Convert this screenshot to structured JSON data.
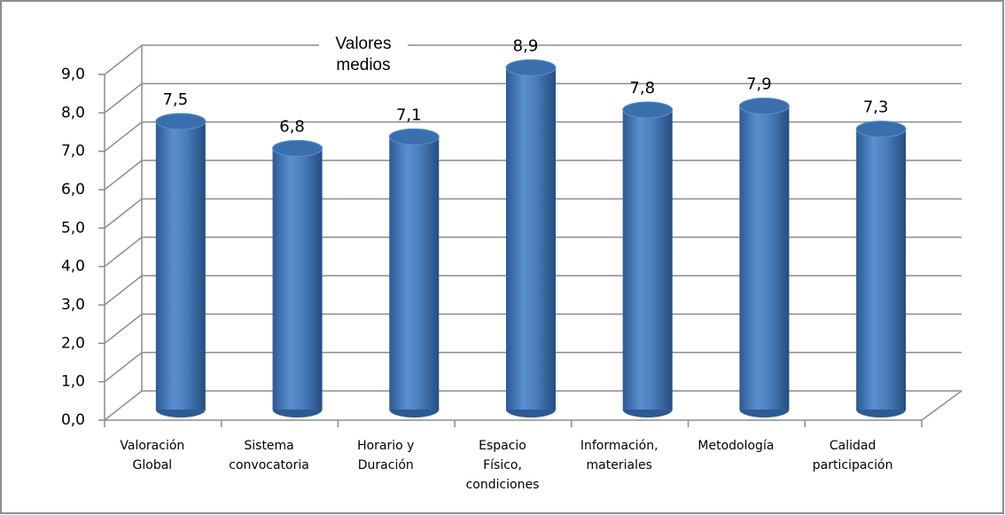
{
  "chart_data": {
    "type": "bar",
    "title": "Valores medios",
    "categories": [
      [
        "Valoración",
        "Global"
      ],
      [
        "Sistema",
        "convocatoria"
      ],
      [
        "Horario y",
        "Duración"
      ],
      [
        "Espacio",
        "Físico,",
        "condiciones"
      ],
      [
        "Información,",
        "materiales"
      ],
      [
        "Metodología"
      ],
      [
        "Calidad",
        "participación"
      ]
    ],
    "values": [
      7.5,
      6.8,
      7.1,
      8.9,
      7.8,
      7.9,
      7.3
    ],
    "value_labels": [
      "7,5",
      "6,8",
      "7,1",
      "8,9",
      "7,8",
      "7,9",
      "7,3"
    ],
    "color": "#4a7ebb",
    "ylim": [
      0,
      9
    ],
    "yticks": [
      {
        "value": 0,
        "label": "0,0"
      },
      {
        "value": 1,
        "label": "1,0"
      },
      {
        "value": 2,
        "label": "2,0"
      },
      {
        "value": 3,
        "label": "3,0"
      },
      {
        "value": 4,
        "label": "4,0"
      },
      {
        "value": 5,
        "label": "5,0"
      },
      {
        "value": 6,
        "label": "6,0"
      },
      {
        "value": 7,
        "label": "7,0"
      },
      {
        "value": 8,
        "label": "8,0"
      },
      {
        "value": 9,
        "label": "9,0"
      }
    ],
    "grid": true
  }
}
